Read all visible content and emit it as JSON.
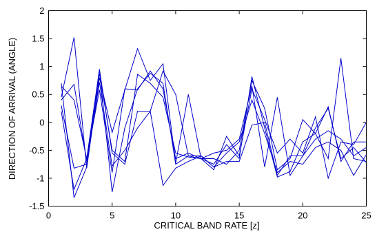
{
  "chart_data": {
    "type": "line",
    "title": "",
    "xlabel": "CRITICAL BAND RATE [z]",
    "ylabel": "DIRECTION OF ARRIVAL (ANGLE)",
    "xlim": [
      0,
      25
    ],
    "ylim": [
      -1.5,
      2
    ],
    "x_ticks": [
      "0",
      "5",
      "10",
      "15",
      "20",
      "25"
    ],
    "y_ticks": [
      "-1.5",
      "-1",
      "-0.5",
      "0",
      "0.5",
      "1",
      "1.5",
      "2"
    ],
    "x_tick_values": [
      0,
      5,
      10,
      15,
      20,
      25
    ],
    "y_tick_values": [
      -1.5,
      -1,
      -0.5,
      0,
      0.5,
      1,
      1.5,
      2
    ],
    "grid": false,
    "line_color": "#0000cc",
    "x": [
      1,
      2,
      3,
      4,
      5,
      6,
      7,
      8,
      9,
      10,
      11,
      12,
      13,
      14,
      15,
      16,
      17,
      18,
      19,
      20,
      21,
      22,
      23,
      24,
      25
    ],
    "series": [
      {
        "values": [
          0.7,
          -1.35,
          -0.8,
          0.95,
          -1.25,
          -0.1,
          0.6,
          0.88,
          0.7,
          -0.75,
          -0.6,
          -0.65,
          -0.75,
          -0.4,
          -0.65,
          0.82,
          -0.1,
          -0.98,
          -0.88,
          -0.35,
          -0.2,
          -0.65,
          1.15,
          -0.65,
          -0.7
        ]
      },
      {
        "values": [
          0.45,
          1.52,
          -0.82,
          0.8,
          -0.18,
          0.58,
          1.32,
          0.75,
          1.05,
          -0.73,
          0.5,
          -0.65,
          -0.85,
          -0.25,
          -0.6,
          0.6,
          0.05,
          -0.55,
          -0.3,
          -0.55,
          0.1,
          -1.0,
          -0.35,
          -0.4,
          0.0
        ]
      },
      {
        "values": [
          0.4,
          0.68,
          -0.7,
          0.88,
          -0.5,
          -0.7,
          0.86,
          0.7,
          0.45,
          -0.55,
          -0.62,
          -0.65,
          -0.65,
          -0.75,
          -0.5,
          0.75,
          0.25,
          -0.85,
          -0.65,
          0.05,
          -0.2,
          0.28,
          -0.7,
          -0.35,
          -0.35
        ]
      },
      {
        "values": [
          0.3,
          -0.82,
          -0.75,
          0.72,
          -0.78,
          -0.5,
          -0.1,
          0.2,
          -1.13,
          -0.82,
          -0.7,
          -0.6,
          -0.8,
          -0.7,
          -0.7,
          -0.05,
          0.0,
          -0.95,
          -0.6,
          -0.6,
          -0.3,
          -0.15,
          -0.3,
          -0.6,
          -0.45
        ]
      },
      {
        "values": [
          0.65,
          0.4,
          -0.65,
          0.58,
          -0.9,
          0.6,
          0.58,
          0.92,
          0.6,
          -0.65,
          -0.55,
          -0.65,
          -0.55,
          -0.5,
          -0.3,
          0.65,
          -0.8,
          0.45,
          -0.95,
          -0.6,
          -0.1,
          0.25,
          -0.65,
          -0.45,
          -0.72
        ]
      },
      {
        "values": [
          0.2,
          -1.2,
          -0.65,
          0.95,
          -0.55,
          -0.75,
          0.2,
          0.2,
          0.92,
          0.5,
          -0.6,
          -0.6,
          -0.8,
          -0.55,
          -0.35,
          0.4,
          -0.2,
          -0.9,
          -0.7,
          -0.75,
          -0.45,
          -0.35,
          -0.5,
          -0.95,
          -0.58
        ]
      }
    ]
  }
}
